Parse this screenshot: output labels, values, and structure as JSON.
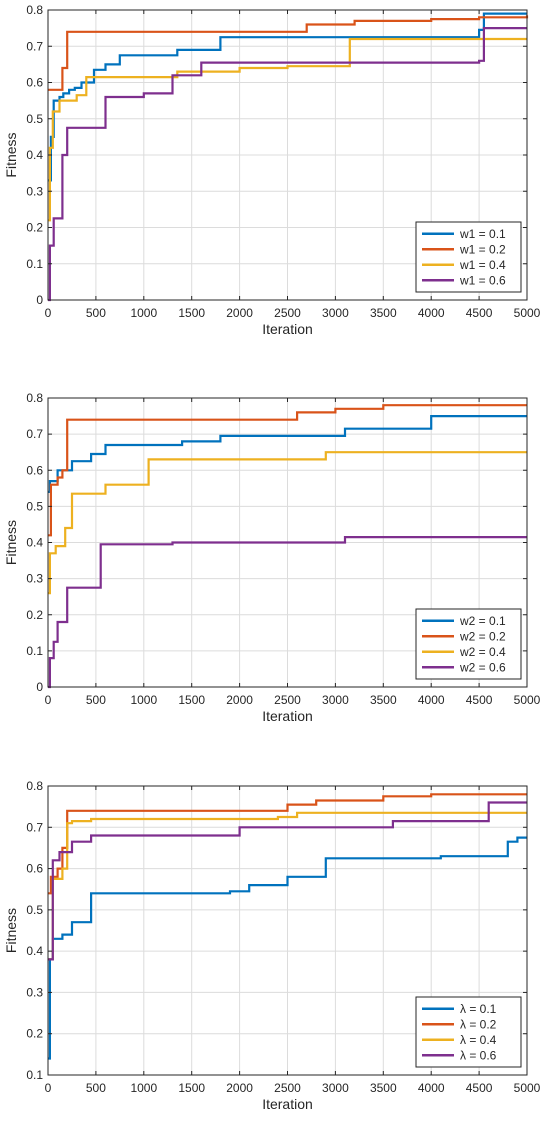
{
  "chart_data": [
    {
      "type": "line",
      "step": true,
      "xlabel": "Iteration",
      "ylabel": "Fitness",
      "xlim": [
        0,
        5000
      ],
      "ylim": [
        0,
        0.8
      ],
      "xticks": [
        0,
        500,
        1000,
        1500,
        2000,
        2500,
        3000,
        3500,
        4000,
        4500,
        5000
      ],
      "yticks": [
        0,
        0.1,
        0.2,
        0.3,
        0.4,
        0.5,
        0.6,
        0.7,
        0.8
      ],
      "grid": true,
      "legend_position": "bottom-right",
      "series": [
        {
          "name": "w1 = 0.1",
          "color": "#0072BD",
          "x": [
            0,
            30,
            60,
            120,
            160,
            220,
            280,
            350,
            480,
            600,
            750,
            950,
            1350,
            1800,
            3200,
            4500,
            4550,
            5000
          ],
          "y": [
            0.33,
            0.45,
            0.55,
            0.56,
            0.57,
            0.58,
            0.585,
            0.6,
            0.635,
            0.65,
            0.675,
            0.675,
            0.69,
            0.725,
            0.725,
            0.745,
            0.79,
            0.79
          ]
        },
        {
          "name": "w1 = 0.2",
          "color": "#D95319",
          "x": [
            0,
            150,
            200,
            2500,
            2700,
            3200,
            4000,
            4500,
            5000
          ],
          "y": [
            0.58,
            0.64,
            0.74,
            0.74,
            0.76,
            0.77,
            0.775,
            0.78,
            0.785
          ]
        },
        {
          "name": "w1 = 0.4",
          "color": "#EDB120",
          "x": [
            0,
            20,
            50,
            120,
            300,
            400,
            1350,
            2000,
            2500,
            3100,
            3150,
            4500,
            5000
          ],
          "y": [
            0.22,
            0.42,
            0.52,
            0.55,
            0.565,
            0.615,
            0.63,
            0.64,
            0.645,
            0.645,
            0.72,
            0.72,
            0.72
          ]
        },
        {
          "name": "w1 = 0.6",
          "color": "#7E2F8E",
          "x": [
            0,
            20,
            60,
            150,
            200,
            600,
            1000,
            1300,
            1600,
            4500,
            4550,
            5000
          ],
          "y": [
            0.0,
            0.15,
            0.225,
            0.4,
            0.475,
            0.56,
            0.57,
            0.62,
            0.655,
            0.66,
            0.75,
            0.75
          ]
        }
      ]
    },
    {
      "type": "line",
      "step": true,
      "xlabel": "Iteration",
      "ylabel": "Fitness",
      "xlim": [
        0,
        5000
      ],
      "ylim": [
        0,
        0.8
      ],
      "xticks": [
        0,
        500,
        1000,
        1500,
        2000,
        2500,
        3000,
        3500,
        4000,
        4500,
        5000
      ],
      "yticks": [
        0,
        0.1,
        0.2,
        0.3,
        0.4,
        0.5,
        0.6,
        0.7,
        0.8
      ],
      "grid": true,
      "legend_position": "bottom-right",
      "series": [
        {
          "name": "w2 = 0.1",
          "color": "#0072BD",
          "x": [
            0,
            20,
            100,
            250,
            450,
            600,
            1400,
            1800,
            3100,
            4000,
            5000
          ],
          "y": [
            0.54,
            0.57,
            0.6,
            0.625,
            0.645,
            0.67,
            0.68,
            0.695,
            0.715,
            0.75,
            0.75
          ]
        },
        {
          "name": "w2 = 0.2",
          "color": "#D95319",
          "x": [
            0,
            30,
            100,
            150,
            200,
            2500,
            2600,
            3000,
            3500,
            5000
          ],
          "y": [
            0.42,
            0.56,
            0.58,
            0.6,
            0.74,
            0.74,
            0.76,
            0.77,
            0.78,
            0.78
          ]
        },
        {
          "name": "w2 = 0.4",
          "color": "#EDB120",
          "x": [
            0,
            20,
            80,
            180,
            250,
            600,
            1050,
            2850,
            2900,
            5000
          ],
          "y": [
            0.26,
            0.37,
            0.39,
            0.44,
            0.535,
            0.56,
            0.63,
            0.63,
            0.65,
            0.65
          ]
        },
        {
          "name": "w2 = 0.6",
          "color": "#7E2F8E",
          "x": [
            0,
            20,
            60,
            100,
            200,
            550,
            1300,
            2000,
            3100,
            5000
          ],
          "y": [
            0.0,
            0.08,
            0.125,
            0.18,
            0.275,
            0.395,
            0.4,
            0.4,
            0.415,
            0.415
          ]
        }
      ]
    },
    {
      "type": "line",
      "step": true,
      "xlabel": "Iteration",
      "ylabel": "Fitness",
      "xlim": [
        0,
        5000
      ],
      "ylim": [
        0.1,
        0.8
      ],
      "xticks": [
        0,
        500,
        1000,
        1500,
        2000,
        2500,
        3000,
        3500,
        4000,
        4500,
        5000
      ],
      "yticks": [
        0.1,
        0.2,
        0.3,
        0.4,
        0.5,
        0.6,
        0.7,
        0.8
      ],
      "grid": true,
      "legend_position": "bottom-right",
      "series": [
        {
          "name": "λ = 0.1",
          "color": "#0072BD",
          "x": [
            0,
            20,
            50,
            150,
            250,
            450,
            1900,
            2100,
            2500,
            2900,
            4100,
            4800,
            4900,
            5000
          ],
          "y": [
            0.14,
            0.38,
            0.43,
            0.44,
            0.47,
            0.54,
            0.545,
            0.56,
            0.58,
            0.625,
            0.63,
            0.665,
            0.675,
            0.675
          ]
        },
        {
          "name": "λ = 0.2",
          "color": "#D95319",
          "x": [
            0,
            30,
            100,
            150,
            200,
            2500,
            2800,
            3500,
            4000,
            5000
          ],
          "y": [
            0.54,
            0.58,
            0.6,
            0.65,
            0.74,
            0.755,
            0.765,
            0.775,
            0.78,
            0.78
          ]
        },
        {
          "name": "λ = 0.4",
          "color": "#EDB120",
          "x": [
            0,
            50,
            150,
            200,
            250,
            450,
            2400,
            2600,
            3400,
            5000
          ],
          "y": [
            0.38,
            0.575,
            0.6,
            0.71,
            0.715,
            0.72,
            0.725,
            0.735,
            0.735,
            0.735
          ]
        },
        {
          "name": "λ = 0.6",
          "color": "#7E2F8E",
          "x": [
            0,
            50,
            120,
            250,
            450,
            2000,
            2100,
            3600,
            4600,
            5000
          ],
          "y": [
            0.38,
            0.62,
            0.64,
            0.665,
            0.68,
            0.7,
            0.7,
            0.715,
            0.76,
            0.76
          ]
        }
      ]
    }
  ]
}
